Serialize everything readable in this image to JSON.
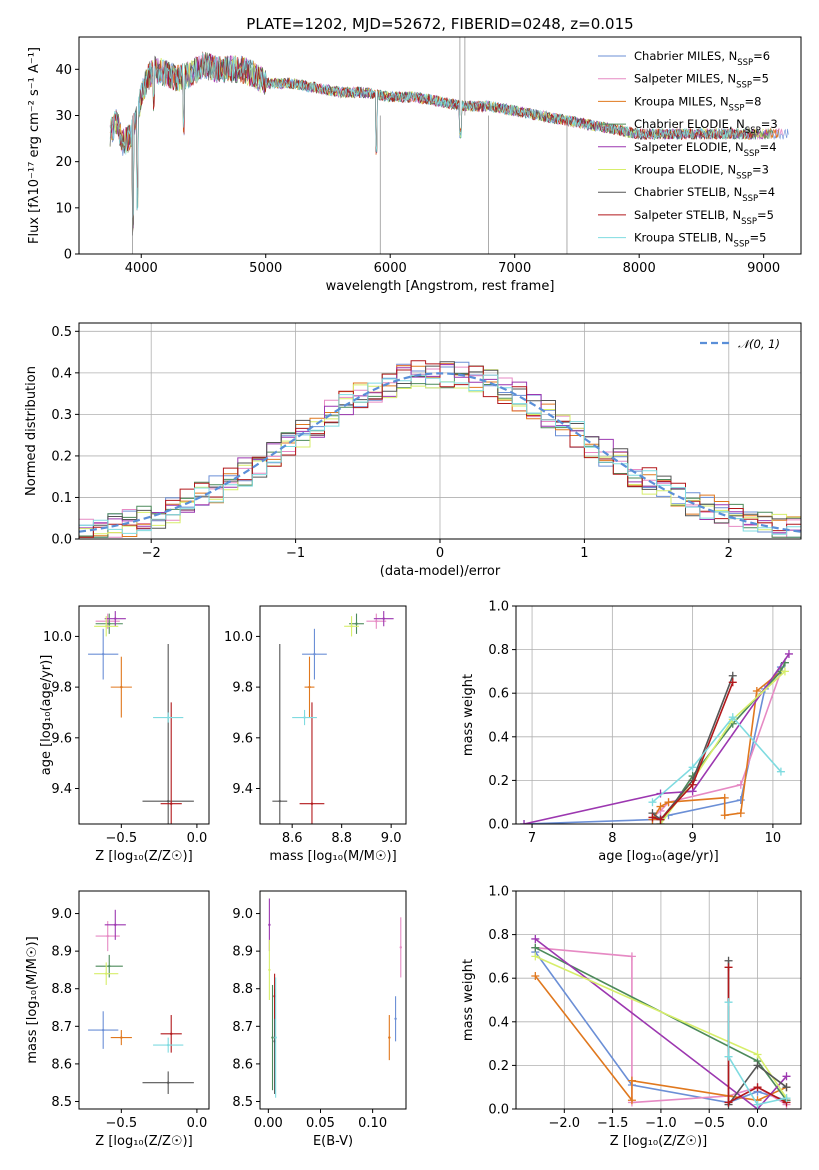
{
  "figure": {
    "title": "PLATE=1202, MJD=52672, FIBERID=0248, z=0.015",
    "colors": [
      "#6b8fd6",
      "#e68ac4",
      "#e0781e",
      "#4c8a5a",
      "#9c37b0",
      "#d7ee6a",
      "#555555",
      "#b2181b",
      "#7fdbe0"
    ]
  },
  "chart_data": [
    {
      "id": "spectrum",
      "type": "line",
      "xlabel": "wavelength [Angstrom, rest frame]",
      "ylabel": "Flux [fλ10⁻¹⁷ erg cm⁻² s⁻¹ A⁻¹]",
      "xlim": [
        3500,
        9300
      ],
      "ylim": [
        0,
        47
      ],
      "xticks": [
        4000,
        5000,
        6000,
        7000,
        8000,
        9000
      ],
      "yticks": [
        0,
        10,
        20,
        30,
        40
      ],
      "grid": false,
      "legend": "top-right",
      "continuum": {
        "x": [
          3750,
          3800,
          3850,
          3900,
          3950,
          4000,
          4050,
          4100,
          4200,
          4300,
          4400,
          4500,
          4600,
          4700,
          4800,
          4900,
          5000,
          5200,
          5400,
          5600,
          5800,
          6000,
          6200,
          6400,
          6600,
          6800,
          7000,
          7200,
          7400,
          7600,
          7800,
          8000,
          8200,
          8400,
          8600,
          8800,
          9000,
          9200
        ],
        "y": [
          26,
          29,
          24,
          25,
          28,
          34,
          38,
          40,
          39,
          38,
          39,
          41,
          40,
          40,
          40,
          39,
          37,
          37,
          36,
          35,
          35,
          34,
          34,
          33,
          32,
          32,
          31,
          30,
          29,
          28,
          27,
          26,
          26,
          26,
          26,
          26,
          26,
          26
        ]
      },
      "series": [
        {
          "name": "Chabrier MILES",
          "n": "6"
        },
        {
          "name": "Salpeter MILES",
          "n": "5"
        },
        {
          "name": "Kroupa MILES",
          "n": "8"
        },
        {
          "name": "Chabrier ELODIE",
          "n": "3"
        },
        {
          "name": "Salpeter ELODIE",
          "n": "4"
        },
        {
          "name": "Kroupa ELODIE",
          "n": "3"
        },
        {
          "name": "Chabrier STELIB",
          "n": "4"
        },
        {
          "name": "Salpeter STELIB",
          "n": "5"
        },
        {
          "name": "Kroupa STELIB",
          "n": "5"
        }
      ]
    },
    {
      "id": "residuals",
      "type": "line",
      "xlabel": "(data-model)/error",
      "ylabel": "Normed distribution",
      "xlim": [
        -2.5,
        2.5
      ],
      "ylim": [
        0,
        0.52
      ],
      "xticks": [
        -2,
        -1,
        0,
        1,
        2
      ],
      "yticks": [
        0.0,
        0.1,
        0.2,
        0.3,
        0.4,
        0.5
      ],
      "grid": true,
      "legend": "top-right",
      "gaussian_label": "𝒩(0, 1)",
      "bin_width": 0.1
    },
    {
      "id": "age_vs_Z",
      "type": "scatter",
      "xlabel": "Z [log₁₀(Z/Z☉)]",
      "ylabel": "age  [log₁₀(age/yr)]",
      "xlim": [
        -0.78,
        0.08
      ],
      "ylim": [
        9.26,
        10.12
      ],
      "xticks": [
        -0.5,
        0.0
      ],
      "yticks": [
        9.4,
        9.6,
        9.8,
        10.0
      ],
      "points": [
        {
          "x": -0.62,
          "y": 9.93,
          "xe": 0.1,
          "ye": 0.1
        },
        {
          "x": -0.59,
          "y": 10.06,
          "xe": 0.08,
          "ye": 0.03
        },
        {
          "x": -0.5,
          "y": 9.8,
          "xe": 0.07,
          "ye": 0.12
        },
        {
          "x": -0.58,
          "y": 10.05,
          "xe": 0.09,
          "ye": 0.04
        },
        {
          "x": -0.54,
          "y": 10.07,
          "xe": 0.07,
          "ye": 0.03
        },
        {
          "x": -0.6,
          "y": 10.04,
          "xe": 0.08,
          "ye": 0.04
        },
        {
          "x": -0.19,
          "y": 9.35,
          "xe": 0.17,
          "ye": 0.62
        },
        {
          "x": -0.17,
          "y": 9.34,
          "xe": 0.07,
          "ye": 0.4
        },
        {
          "x": -0.19,
          "y": 9.68,
          "xe": 0.1,
          "ye": 0.02
        }
      ]
    },
    {
      "id": "age_vs_mass",
      "type": "scatter",
      "xlabel": "mass [log₁₀(M/M☉)]",
      "ylabel": "",
      "xlim": [
        8.47,
        9.06
      ],
      "ylim": [
        9.26,
        10.12
      ],
      "xticks": [
        8.6,
        8.8,
        9.0
      ],
      "yticks": [
        9.4,
        9.6,
        9.8,
        10.0
      ],
      "points": [
        {
          "x": 8.69,
          "y": 9.93,
          "xe": 0.05,
          "ye": 0.1
        },
        {
          "x": 8.94,
          "y": 10.06,
          "xe": 0.04,
          "ye": 0.03
        },
        {
          "x": 8.67,
          "y": 9.8,
          "xe": 0.02,
          "ye": 0.12
        },
        {
          "x": 8.86,
          "y": 10.05,
          "xe": 0.03,
          "ye": 0.04
        },
        {
          "x": 8.97,
          "y": 10.07,
          "xe": 0.04,
          "ye": 0.03
        },
        {
          "x": 8.84,
          "y": 10.04,
          "xe": 0.03,
          "ye": 0.04
        },
        {
          "x": 8.55,
          "y": 9.35,
          "xe": 0.03,
          "ye": 0.62
        },
        {
          "x": 8.68,
          "y": 9.34,
          "xe": 0.05,
          "ye": 0.4
        },
        {
          "x": 8.65,
          "y": 9.68,
          "xe": 0.05,
          "ye": 0.03
        }
      ]
    },
    {
      "id": "mass_weight_vs_age",
      "type": "line",
      "xlabel": "age  [log₁₀(age/yr)]",
      "ylabel": "mass weight",
      "xlim": [
        6.8,
        10.35
      ],
      "ylim": [
        0,
        1.0
      ],
      "xticks": [
        7,
        8,
        9,
        10
      ],
      "yticks": [
        0.0,
        0.2,
        0.4,
        0.6,
        0.8,
        1.0
      ],
      "grid": true,
      "series": [
        {
          "name": "Chabrier MILES",
          "x": [
            6.9,
            8.5,
            8.6,
            8.7,
            9.6,
            9.9,
            10.1
          ],
          "y": [
            0.0,
            0.02,
            0.03,
            0.04,
            0.11,
            0.62,
            0.72
          ]
        },
        {
          "name": "Salpeter MILES",
          "x": [
            8.5,
            8.6,
            8.7,
            9.6,
            10.1
          ],
          "y": [
            0.03,
            0.06,
            0.1,
            0.18,
            0.7
          ]
        },
        {
          "name": "Kroupa MILES",
          "x": [
            8.5,
            8.6,
            8.7,
            9.4,
            9.4,
            9.6,
            9.8,
            10.1
          ],
          "y": [
            0.02,
            0.08,
            0.1,
            0.12,
            0.04,
            0.05,
            0.61,
            0.7
          ]
        },
        {
          "name": "Chabrier ELODIE",
          "x": [
            8.6,
            9.0,
            9.5,
            10.1,
            10.15
          ],
          "y": [
            0.0,
            0.22,
            0.46,
            0.7,
            0.74
          ]
        },
        {
          "name": "Salpeter ELODIE",
          "x": [
            6.9,
            8.6,
            9.0,
            10.2
          ],
          "y": [
            0.0,
            0.14,
            0.15,
            0.78
          ]
        },
        {
          "name": "Kroupa ELODIE",
          "x": [
            8.6,
            9.0,
            9.5,
            10.15
          ],
          "y": [
            0.0,
            0.2,
            0.48,
            0.7
          ]
        },
        {
          "name": "Chabrier STELIB",
          "x": [
            8.5,
            8.6,
            9.0,
            9.5
          ],
          "y": [
            0.05,
            0.02,
            0.2,
            0.68
          ]
        },
        {
          "name": "Salpeter STELIB",
          "x": [
            8.5,
            8.6,
            9.0,
            9.5
          ],
          "y": [
            0.03,
            0.02,
            0.18,
            0.65
          ]
        },
        {
          "name": "Kroupa STELIB",
          "x": [
            8.5,
            9.0,
            9.5,
            10.1
          ],
          "y": [
            0.1,
            0.26,
            0.49,
            0.24
          ]
        }
      ]
    },
    {
      "id": "mass_vs_Z",
      "type": "scatter",
      "xlabel": "Z [log₁₀(Z/Z☉)]",
      "ylabel": "mass [log₁₀(M/M☉)]",
      "xlim": [
        -0.78,
        0.08
      ],
      "ylim": [
        8.48,
        9.06
      ],
      "xticks": [
        -0.5,
        0.0
      ],
      "yticks": [
        8.5,
        8.6,
        8.7,
        8.8,
        8.9,
        9.0
      ],
      "points": [
        {
          "x": -0.62,
          "y": 8.69,
          "xe": 0.1,
          "ye": 0.05
        },
        {
          "x": -0.59,
          "y": 8.94,
          "xe": 0.08,
          "ye": 0.04
        },
        {
          "x": -0.5,
          "y": 8.67,
          "xe": 0.07,
          "ye": 0.02
        },
        {
          "x": -0.58,
          "y": 8.86,
          "xe": 0.09,
          "ye": 0.03
        },
        {
          "x": -0.54,
          "y": 8.97,
          "xe": 0.07,
          "ye": 0.04
        },
        {
          "x": -0.6,
          "y": 8.84,
          "xe": 0.08,
          "ye": 0.03
        },
        {
          "x": -0.19,
          "y": 8.55,
          "xe": 0.17,
          "ye": 0.03
        },
        {
          "x": -0.17,
          "y": 8.68,
          "xe": 0.07,
          "ye": 0.05
        },
        {
          "x": -0.19,
          "y": 8.65,
          "xe": 0.1,
          "ye": 0.02
        }
      ]
    },
    {
      "id": "mass_vs_ebv",
      "type": "scatter",
      "xlabel": "E(B-V)",
      "ylabel": "",
      "xlim": [
        -0.008,
        0.132
      ],
      "ylim": [
        8.48,
        9.06
      ],
      "xticks": [
        0.0,
        0.05,
        0.1
      ],
      "yticks": [
        8.5,
        8.6,
        8.7,
        8.8,
        8.9,
        9.0
      ],
      "points": [
        {
          "x": 0.122,
          "y": 8.72,
          "ye": 0.06
        },
        {
          "x": 0.127,
          "y": 8.91,
          "ye": 0.08
        },
        {
          "x": 0.116,
          "y": 8.67,
          "ye": 0.06
        },
        {
          "x": 0.004,
          "y": 8.67,
          "ye": 0.14
        },
        {
          "x": 0.001,
          "y": 8.97,
          "ye": 0.07
        },
        {
          "x": 0.001,
          "y": 8.85,
          "ye": 0.08
        },
        {
          "x": 0.006,
          "y": 8.66,
          "ye": 0.14
        },
        {
          "x": 0.006,
          "y": 8.78,
          "ye": 0.06
        },
        {
          "x": 0.007,
          "y": 8.67,
          "ye": 0.16
        }
      ]
    },
    {
      "id": "mass_weight_vs_Z",
      "type": "line",
      "xlabel": "Z [log₁₀(Z/Z☉)]",
      "ylabel": "mass weight",
      "xlim": [
        -2.5,
        0.45
      ],
      "ylim": [
        0,
        1.0
      ],
      "xticks": [
        -2.0,
        -1.5,
        -1.0,
        -0.5,
        0.0
      ],
      "yticks": [
        0.0,
        0.2,
        0.4,
        0.6,
        0.8,
        1.0
      ],
      "grid": true,
      "series": [
        {
          "name": "Chabrier MILES",
          "x": [
            -2.3,
            -1.3,
            -0.3,
            0.0,
            0.3
          ],
          "y": [
            0.72,
            0.11,
            0.03,
            0.08,
            0.04
          ]
        },
        {
          "name": "Salpeter MILES",
          "x": [
            -2.3,
            -1.3,
            -1.3,
            -0.3,
            0.0,
            0.3
          ],
          "y": [
            0.74,
            0.7,
            0.03,
            0.06,
            0.1,
            0.02
          ]
        },
        {
          "name": "Kroupa MILES",
          "x": [
            -2.3,
            -1.3,
            -1.3,
            -0.3,
            0.0,
            0.3
          ],
          "y": [
            0.61,
            0.04,
            0.13,
            0.06,
            0.04,
            0.1
          ]
        },
        {
          "name": "Chabrier ELODIE",
          "x": [
            -2.3,
            0.0,
            0.3
          ],
          "y": [
            0.74,
            0.22,
            0.04
          ]
        },
        {
          "name": "Salpeter ELODIE",
          "x": [
            -2.3,
            0.0,
            0.3
          ],
          "y": [
            0.78,
            0.0,
            0.15
          ]
        },
        {
          "name": "Kroupa ELODIE",
          "x": [
            -2.3,
            0.0,
            0.3
          ],
          "y": [
            0.7,
            0.25,
            0.05
          ]
        },
        {
          "name": "Chabrier STELIB",
          "x": [
            -0.3,
            -0.3,
            0.0,
            0.3
          ],
          "y": [
            0.68,
            0.02,
            0.2,
            0.1
          ]
        },
        {
          "name": "Salpeter STELIB",
          "x": [
            -0.3,
            -0.3,
            0.0,
            0.3
          ],
          "y": [
            0.65,
            0.03,
            0.1,
            0.03
          ]
        },
        {
          "name": "Kroupa STELIB",
          "x": [
            -0.3,
            -0.3,
            0.0,
            0.3
          ],
          "y": [
            0.49,
            0.24,
            0.02,
            0.05
          ]
        }
      ]
    }
  ]
}
